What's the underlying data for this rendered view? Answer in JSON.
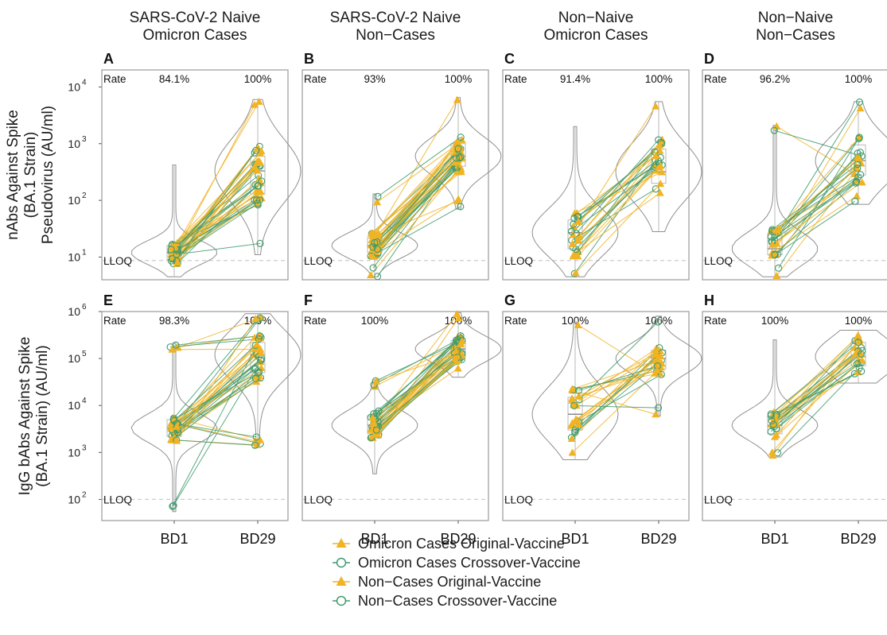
{
  "colors": {
    "original": "#f0b323",
    "crossover": "#3f9b6e",
    "frame": "#9a9a9a",
    "violin": "#8f8f8f",
    "box": "#b8b8b8",
    "lloq_line": "#cccccc"
  },
  "icons": {
    "original": "filled-triangle-icon",
    "crossover": "open-circle-icon"
  },
  "chart_data": {
    "type": "scatter",
    "layout": "2x4 faceted paired dot plot with violins and boxplots, log10 y-axis",
    "column_titles": [
      [
        "SARS-CoV-2 Naive",
        "Omicron Cases"
      ],
      [
        "SARS-CoV-2 Naive",
        "Non−Cases"
      ],
      [
        "Non−Naive",
        "Omicron Cases"
      ],
      [
        "Non−Naive",
        "Non−Cases"
      ]
    ],
    "x_categories": [
      "BD1",
      "BD29"
    ],
    "rate_label": "Rate",
    "lloq_label": "LLOQ",
    "rows": [
      {
        "ylabel": [
          "nAbs Against Spike",
          "(BA.1 Strain)",
          "Pseudovirus (AU/ml)"
        ],
        "y_log_range": [
          0.6,
          4.3
        ],
        "y_ticks": [
          {
            "base": "10",
            "exp": "1",
            "value": 10
          },
          {
            "base": "10",
            "exp": "2",
            "value": 100
          },
          {
            "base": "10",
            "exp": "3",
            "value": 1000
          },
          {
            "base": "10",
            "exp": "4",
            "value": 10000
          }
        ],
        "lloq": 8.7,
        "panels": [
          {
            "letter": "A",
            "rates": [
              "84.1%",
              "100%"
            ],
            "bd1": {
              "min": 4.5,
              "q1": 9,
              "median": 12,
              "q3": 16,
              "max": 420
            },
            "bd29": {
              "min": 11,
              "q1": 130,
              "median": 330,
              "q3": 600,
              "max": 6000
            }
          },
          {
            "letter": "B",
            "rates": [
              "93%",
              "100%"
            ],
            "bd1": {
              "min": 4.5,
              "q1": 12,
              "median": 16,
              "q3": 22,
              "max": 130
            },
            "bd29": {
              "min": 70,
              "q1": 400,
              "median": 600,
              "q3": 1000,
              "max": 6500
            }
          },
          {
            "letter": "C",
            "rates": [
              "91.4%",
              "100%"
            ],
            "bd1": {
              "min": 4.5,
              "q1": 14,
              "median": 27,
              "q3": 45,
              "max": 2000
            },
            "bd29": {
              "min": 28,
              "q1": 200,
              "median": 320,
              "q3": 800,
              "max": 5500
            }
          },
          {
            "letter": "D",
            "rates": [
              "96.2%",
              "100%"
            ],
            "bd1": {
              "min": 4.5,
              "q1": 11,
              "median": 14,
              "q3": 25,
              "max": 2100
            },
            "bd29": {
              "min": 85,
              "q1": 280,
              "median": 500,
              "q3": 950,
              "max": 5500
            }
          }
        ]
      },
      {
        "ylabel": [
          "IgG bAbs Against Spike",
          "(BA.1 Strain) (AU/ml)"
        ],
        "y_log_range": [
          1.55,
          6.0
        ],
        "y_ticks": [
          {
            "base": "10",
            "exp": "2",
            "value": 100
          },
          {
            "base": "10",
            "exp": "3",
            "value": 1000
          },
          {
            "base": "10",
            "exp": "4",
            "value": 10000
          },
          {
            "base": "10",
            "exp": "5",
            "value": 100000
          },
          {
            "base": "10",
            "exp": "6",
            "value": 1000000
          }
        ],
        "lloq": 100,
        "panels": [
          {
            "letter": "E",
            "rates": [
              "98.3%",
              "100%"
            ],
            "bd1": {
              "min": 55,
              "q1": 2200,
              "median": 3300,
              "q3": 5000,
              "max": 210000
            },
            "bd29": {
              "min": 1400,
              "q1": 50000,
              "median": 120000,
              "q3": 220000,
              "max": 900000
            }
          },
          {
            "letter": "F",
            "rates": [
              "100%",
              "100%"
            ],
            "bd1": {
              "min": 350,
              "q1": 2500,
              "median": 3800,
              "q3": 6000,
              "max": 35000
            },
            "bd29": {
              "min": 40000,
              "q1": 110000,
              "median": 160000,
              "q3": 240000,
              "max": 950000
            }
          },
          {
            "letter": "G",
            "rates": [
              "100%",
              "100%"
            ],
            "bd1": {
              "min": 700,
              "q1": 3000,
              "median": 6500,
              "q3": 15000,
              "max": 600000
            },
            "bd29": {
              "min": 6000,
              "q1": 60000,
              "median": 100000,
              "q3": 150000,
              "max": 800000
            }
          },
          {
            "letter": "H",
            "rates": [
              "100%",
              "100%"
            ],
            "bd1": {
              "min": 800,
              "q1": 2500,
              "median": 3800,
              "q3": 6000,
              "max": 250000
            },
            "bd29": {
              "min": 30000,
              "q1": 70000,
              "median": 110000,
              "q3": 220000,
              "max": 400000
            }
          }
        ]
      }
    ],
    "legend": [
      {
        "label": "Omicron Cases Original-Vaccine",
        "marker": "triangle",
        "color_key": "original"
      },
      {
        "label": "Omicron Cases Crossover-Vaccine",
        "marker": "circle",
        "color_key": "crossover"
      },
      {
        "label": "Non−Cases Original-Vaccine",
        "marker": "triangle",
        "color_key": "original"
      },
      {
        "label": "Non−Cases Crossover-Vaccine",
        "marker": "circle",
        "color_key": "crossover"
      }
    ]
  }
}
